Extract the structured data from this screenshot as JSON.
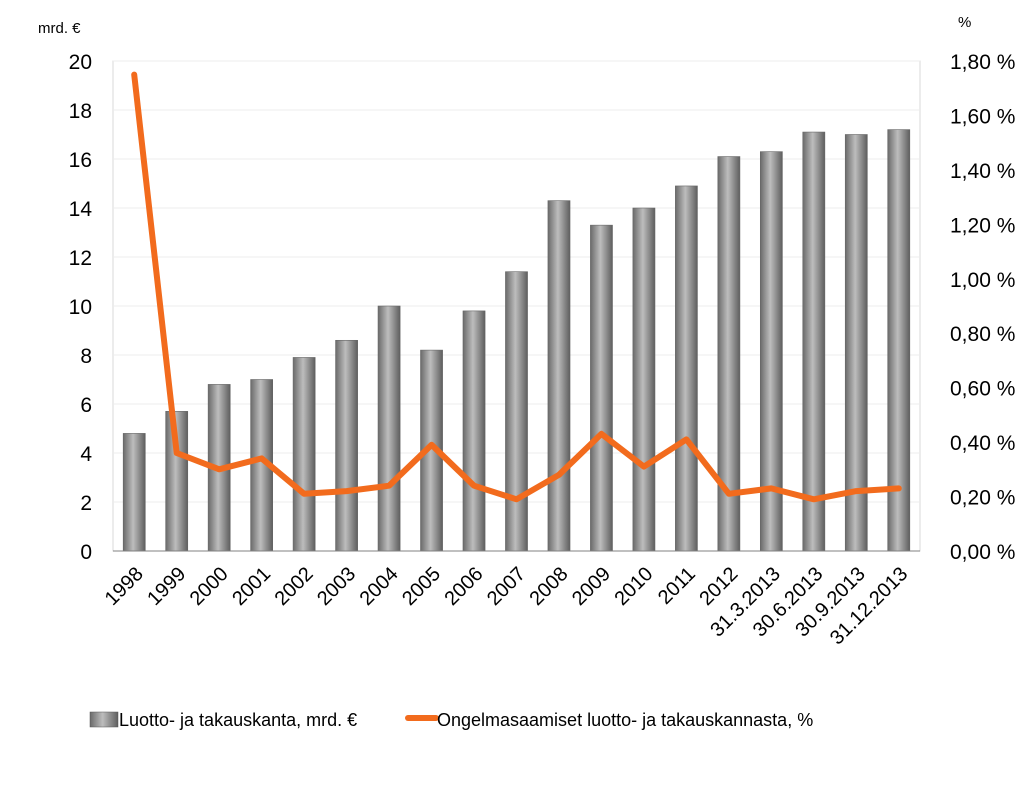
{
  "chart_data": {
    "type": "bar",
    "categories": [
      "1998",
      "1999",
      "2000",
      "2001",
      "2002",
      "2003",
      "2004",
      "2005",
      "2006",
      "2007",
      "2008",
      "2009",
      "2010",
      "2011",
      "2012",
      "31.3.2013",
      "30.6.2013",
      "30.9.2013",
      "31.12.2013"
    ],
    "series": [
      {
        "name": "Luotto- ja takauskanta, mrd. €",
        "type": "bar",
        "axis": "left",
        "color": "#8c8c8c",
        "values": [
          4.8,
          5.7,
          6.8,
          7.0,
          7.9,
          8.6,
          10.0,
          8.2,
          9.8,
          11.4,
          14.3,
          13.3,
          14.0,
          14.9,
          16.1,
          16.3,
          17.1,
          17.0,
          17.2
        ]
      },
      {
        "name": "Ongelmasaamiset luotto- ja takauskannasta, %",
        "type": "line",
        "axis": "right",
        "color": "#f26b1d",
        "values": [
          1.75,
          0.36,
          0.3,
          0.34,
          0.21,
          0.22,
          0.24,
          0.39,
          0.24,
          0.19,
          0.28,
          0.43,
          0.31,
          0.41,
          0.21,
          0.23,
          0.19,
          0.22,
          0.23
        ]
      }
    ],
    "y_left": {
      "unit_label": "mrd. €",
      "min": 0,
      "max": 20,
      "ticks": [
        "0",
        "2",
        "4",
        "6",
        "8",
        "10",
        "12",
        "14",
        "16",
        "18",
        "20"
      ]
    },
    "y_right": {
      "unit_label": "%",
      "min": 0,
      "max": 1.8,
      "ticks": [
        "0,00 %",
        "0,20 %",
        "0,40 %",
        "0,60 %",
        "0,80 %",
        "1,00 %",
        "1,20 %",
        "1,40 %",
        "1,60 %",
        "1,80 %"
      ]
    },
    "grid": true,
    "legend_position": "bottom"
  }
}
